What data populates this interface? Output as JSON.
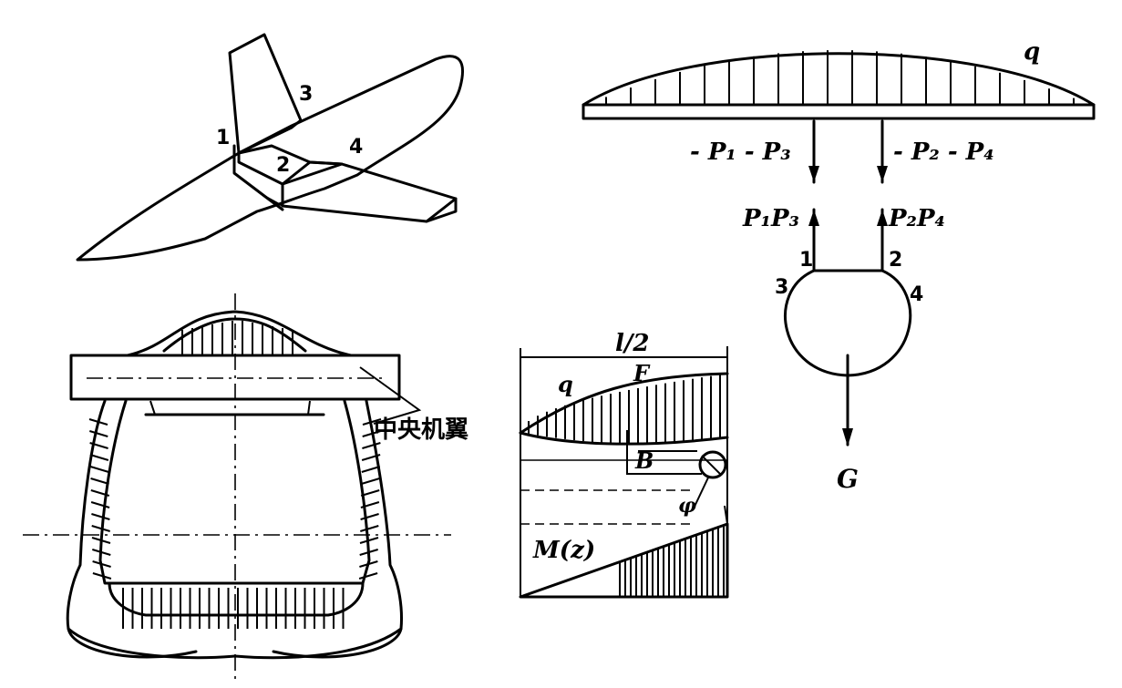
{
  "figure": {
    "wing_sketch": {
      "labels": [
        "1",
        "2",
        "3",
        "4"
      ]
    },
    "fuselage_section": {
      "label": "中央机翼"
    },
    "moment_diagram": {
      "span_label": "l/2",
      "load_label": "q",
      "force_label": "F",
      "point_label": "B",
      "angle_label": "φ",
      "moment_label": "M(z)"
    },
    "free_body": {
      "load_label": "q",
      "reaction_left": "- P₁ - P₃",
      "reaction_right": "- P₂ - P₄",
      "force_left": "P₁P₃",
      "force_right": "P₂P₄",
      "node_labels": [
        "1",
        "2",
        "3",
        "4"
      ],
      "weight_label": "G"
    }
  }
}
